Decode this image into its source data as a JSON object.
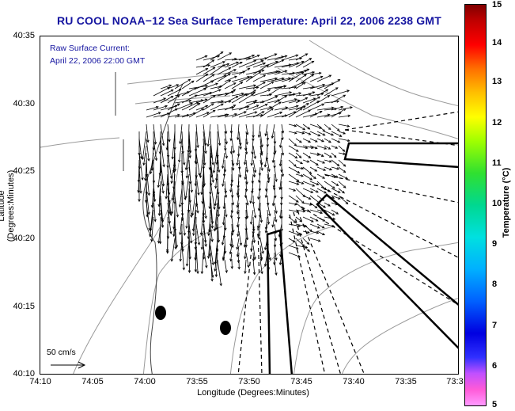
{
  "title": "RU COOL  NOAA−12  Sea Surface Temperature:  April 22, 2006 2238 GMT",
  "annotation": {
    "line1": "Raw Surface Current:",
    "line2": "April 22, 2006 22:00 GMT"
  },
  "scale_label": "50 cm/s",
  "axes": {
    "xlabel": "Longitude (Degrees:Minutes)",
    "ylabel": "Latitude (Degrees:Minutes)",
    "x_ticks": [
      "74:10",
      "74:05",
      "74:00",
      "73:55",
      "73:50",
      "73:45",
      "73:40",
      "73:35",
      "73:3"
    ],
    "y_ticks": [
      "40:35",
      "40:30",
      "40:25",
      "40:20",
      "40:15",
      "40:10"
    ]
  },
  "colorbar": {
    "label": "Temperature (°C)",
    "ticks": [
      "15",
      "14",
      "13",
      "12",
      "11",
      "10",
      "9",
      "8",
      "7",
      "6",
      "5"
    ],
    "range": [
      5,
      15
    ]
  },
  "colors": {
    "title": "#1414a0",
    "annotation": "#1414a0"
  }
}
